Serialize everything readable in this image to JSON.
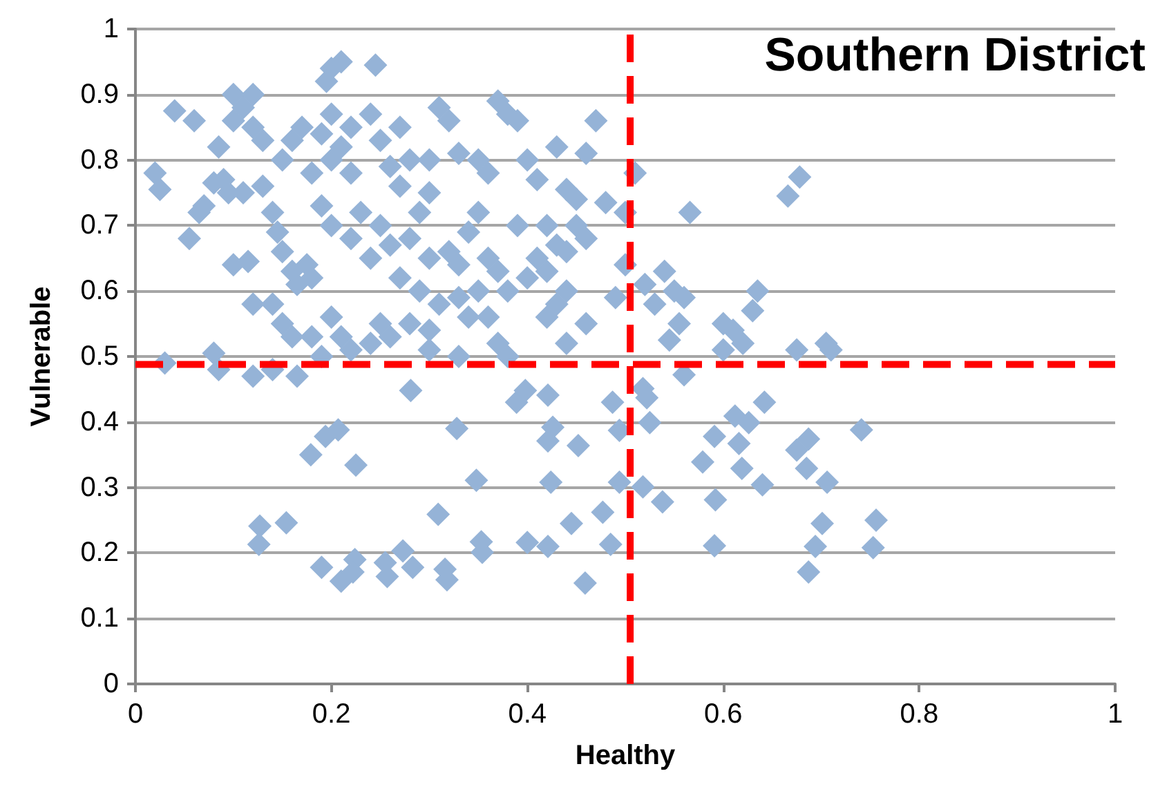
{
  "chart_data": {
    "type": "scatter",
    "title": "Southern District",
    "xlabel": "Healthy",
    "ylabel": "Vulnerable",
    "xlim": [
      0,
      1
    ],
    "xticks": [
      0,
      0.2,
      0.4,
      0.6,
      0.8,
      1
    ],
    "ylim": [
      0,
      1
    ],
    "yticks": [
      0,
      0.1,
      0.2,
      0.3,
      0.4,
      0.5,
      0.6,
      0.7,
      0.8,
      0.9,
      1
    ],
    "grid": "y",
    "marker": "diamond",
    "ref_lines": [
      {
        "axis": "x",
        "value": 0.505,
        "color": "#ff0000",
        "line_style": "dashed"
      },
      {
        "axis": "y",
        "value": 0.488,
        "color": "#ff0000",
        "line_style": "dashed"
      }
    ],
    "series": [
      {
        "color": "#95b3d7",
        "x": [
          0.02,
          0.025,
          0.04,
          0.06,
          0.055,
          0.065,
          0.07,
          0.08,
          0.085,
          0.09,
          0.1,
          0.1,
          0.11,
          0.12,
          0.12,
          0.13,
          0.1,
          0.115,
          0.095,
          0.11,
          0.13,
          0.14,
          0.145,
          0.15,
          0.16,
          0.165,
          0.18,
          0.175,
          0.12,
          0.14,
          0.15,
          0.16,
          0.18,
          0.2,
          0.21,
          0.22,
          0.19,
          0.15,
          0.16,
          0.17,
          0.18,
          0.19,
          0.2,
          0.2,
          0.21,
          0.22,
          0.22,
          0.2,
          0.195,
          0.21,
          0.245,
          0.24,
          0.25,
          0.26,
          0.27,
          0.27,
          0.28,
          0.29,
          0.3,
          0.3,
          0.31,
          0.32,
          0.33,
          0.35,
          0.36,
          0.38,
          0.37,
          0.39,
          0.4,
          0.41,
          0.43,
          0.46,
          0.47,
          0.51,
          0.45,
          0.44,
          0.48,
          0.5,
          0.566,
          0.666,
          0.678,
          0.23,
          0.25,
          0.26,
          0.28,
          0.3,
          0.32,
          0.33,
          0.24,
          0.22,
          0.2,
          0.19,
          0.27,
          0.29,
          0.31,
          0.33,
          0.35,
          0.36,
          0.37,
          0.38,
          0.4,
          0.42,
          0.43,
          0.41,
          0.44,
          0.45,
          0.46,
          0.42,
          0.39,
          0.35,
          0.34,
          0.36,
          0.37,
          0.34,
          0.3,
          0.28,
          0.26,
          0.25,
          0.24,
          0.3,
          0.33,
          0.38,
          0.44,
          0.46,
          0.43,
          0.42,
          0.44,
          0.49,
          0.5,
          0.52,
          0.53,
          0.54,
          0.55,
          0.56,
          0.555,
          0.545,
          0.6,
          0.6,
          0.61,
          0.62,
          0.635,
          0.63,
          0.675,
          0.705,
          0.71,
          0.03,
          0.08,
          0.085,
          0.12,
          0.14,
          0.165,
          0.281,
          0.328,
          0.348,
          0.309,
          0.353,
          0.354,
          0.179,
          0.194,
          0.207,
          0.225,
          0.127,
          0.126,
          0.154,
          0.19,
          0.21,
          0.224,
          0.222,
          0.255,
          0.257,
          0.273,
          0.283,
          0.316,
          0.318,
          0.389,
          0.398,
          0.4,
          0.421,
          0.426,
          0.421,
          0.452,
          0.424,
          0.445,
          0.421,
          0.459,
          0.487,
          0.494,
          0.494,
          0.485,
          0.477,
          0.518,
          0.522,
          0.525,
          0.518,
          0.538,
          0.56,
          0.591,
          0.579,
          0.592,
          0.591,
          0.612,
          0.626,
          0.616,
          0.619,
          0.642,
          0.64,
          0.675,
          0.687,
          0.685,
          0.706,
          0.701,
          0.694,
          0.687,
          0.741,
          0.756,
          0.753
        ],
        "values": [
          0.78,
          0.755,
          0.875,
          0.86,
          0.68,
          0.72,
          0.73,
          0.765,
          0.82,
          0.77,
          0.9,
          0.86,
          0.88,
          0.9,
          0.85,
          0.83,
          0.64,
          0.645,
          0.75,
          0.75,
          0.76,
          0.72,
          0.69,
          0.66,
          0.63,
          0.61,
          0.62,
          0.64,
          0.58,
          0.58,
          0.55,
          0.53,
          0.53,
          0.56,
          0.53,
          0.51,
          0.5,
          0.8,
          0.83,
          0.85,
          0.78,
          0.84,
          0.8,
          0.87,
          0.82,
          0.78,
          0.85,
          0.94,
          0.92,
          0.95,
          0.945,
          0.87,
          0.83,
          0.79,
          0.85,
          0.76,
          0.8,
          0.72,
          0.75,
          0.8,
          0.88,
          0.86,
          0.81,
          0.8,
          0.78,
          0.87,
          0.89,
          0.86,
          0.8,
          0.77,
          0.82,
          0.81,
          0.86,
          0.78,
          0.74,
          0.755,
          0.735,
          0.72,
          0.72,
          0.745,
          0.774,
          0.72,
          0.7,
          0.67,
          0.68,
          0.65,
          0.66,
          0.64,
          0.65,
          0.68,
          0.7,
          0.73,
          0.62,
          0.6,
          0.58,
          0.59,
          0.6,
          0.56,
          0.52,
          0.6,
          0.62,
          0.63,
          0.67,
          0.65,
          0.66,
          0.7,
          0.68,
          0.7,
          0.7,
          0.72,
          0.69,
          0.65,
          0.63,
          0.56,
          0.54,
          0.55,
          0.53,
          0.55,
          0.52,
          0.51,
          0.5,
          0.5,
          0.52,
          0.55,
          0.58,
          0.56,
          0.6,
          0.59,
          0.64,
          0.61,
          0.58,
          0.63,
          0.6,
          0.59,
          0.55,
          0.525,
          0.51,
          0.55,
          0.54,
          0.52,
          0.6,
          0.57,
          0.51,
          0.52,
          0.51,
          0.49,
          0.505,
          0.48,
          0.47,
          0.48,
          0.47,
          0.448,
          0.39,
          0.311,
          0.259,
          0.217,
          0.201,
          0.35,
          0.378,
          0.388,
          0.334,
          0.241,
          0.213,
          0.246,
          0.178,
          0.157,
          0.19,
          0.171,
          0.185,
          0.164,
          0.203,
          0.178,
          0.175,
          0.159,
          0.43,
          0.448,
          0.216,
          0.441,
          0.392,
          0.371,
          0.364,
          0.308,
          0.245,
          0.21,
          0.154,
          0.43,
          0.387,
          0.308,
          0.213,
          0.262,
          0.451,
          0.437,
          0.399,
          0.301,
          0.278,
          0.472,
          0.378,
          0.339,
          0.281,
          0.211,
          0.409,
          0.399,
          0.367,
          0.329,
          0.43,
          0.304,
          0.357,
          0.374,
          0.329,
          0.308,
          0.245,
          0.21,
          0.171,
          0.388,
          0.25,
          0.208
        ]
      }
    ]
  }
}
